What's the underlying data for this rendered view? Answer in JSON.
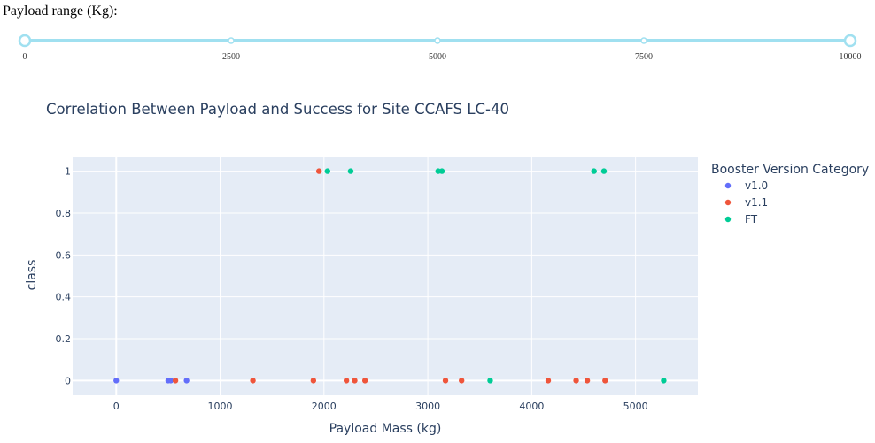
{
  "slider": {
    "label": "Payload range (Kg):",
    "min": 0,
    "max": 10000,
    "ticks": [
      "0",
      "2500",
      "5000",
      "7500",
      "10000"
    ],
    "selected_range": [
      0,
      10000
    ],
    "track_color": "#a0e0f0",
    "handle_color": "#a0e0f0"
  },
  "chart_data": {
    "type": "scatter",
    "title": "Correlation Between Payload and Success for Site CCAFS LC-40",
    "xlabel": "Payload Mass (kg)",
    "ylabel": "class",
    "xlim": [
      -420,
      5600
    ],
    "ylim": [
      -0.07,
      1.07
    ],
    "x_ticks": [
      0,
      1000,
      2000,
      3000,
      4000,
      5000
    ],
    "y_ticks": [
      0,
      0.2,
      0.4,
      0.6,
      0.8,
      1
    ],
    "y_tick_labels": [
      "0",
      "0.2",
      "0.4",
      "0.6",
      "0.8",
      "1"
    ],
    "grid": true,
    "background": "#e5ecf6",
    "legend_title": "Booster Version Category",
    "legend_position": "right",
    "series": [
      {
        "name": "v1.0",
        "color": "#636efa",
        "points": [
          [
            0,
            0
          ],
          [
            500,
            0
          ],
          [
            525,
            0
          ],
          [
            677,
            0
          ]
        ]
      },
      {
        "name": "v1.1",
        "color": "#ef553b",
        "points": [
          [
            570,
            0
          ],
          [
            1316,
            0
          ],
          [
            1898,
            0
          ],
          [
            1952,
            1
          ],
          [
            2216,
            0
          ],
          [
            2296,
            0
          ],
          [
            2395,
            0
          ],
          [
            3170,
            0
          ],
          [
            3325,
            0
          ],
          [
            4159,
            0
          ],
          [
            4428,
            0
          ],
          [
            4535,
            0
          ],
          [
            4707,
            0
          ]
        ]
      },
      {
        "name": "FT",
        "color": "#00cc96",
        "points": [
          [
            2034,
            1
          ],
          [
            2257,
            1
          ],
          [
            3100,
            1
          ],
          [
            3136,
            1
          ],
          [
            3600,
            0
          ],
          [
            4600,
            1
          ],
          [
            4696,
            1
          ],
          [
            5271,
            0
          ]
        ]
      }
    ]
  }
}
